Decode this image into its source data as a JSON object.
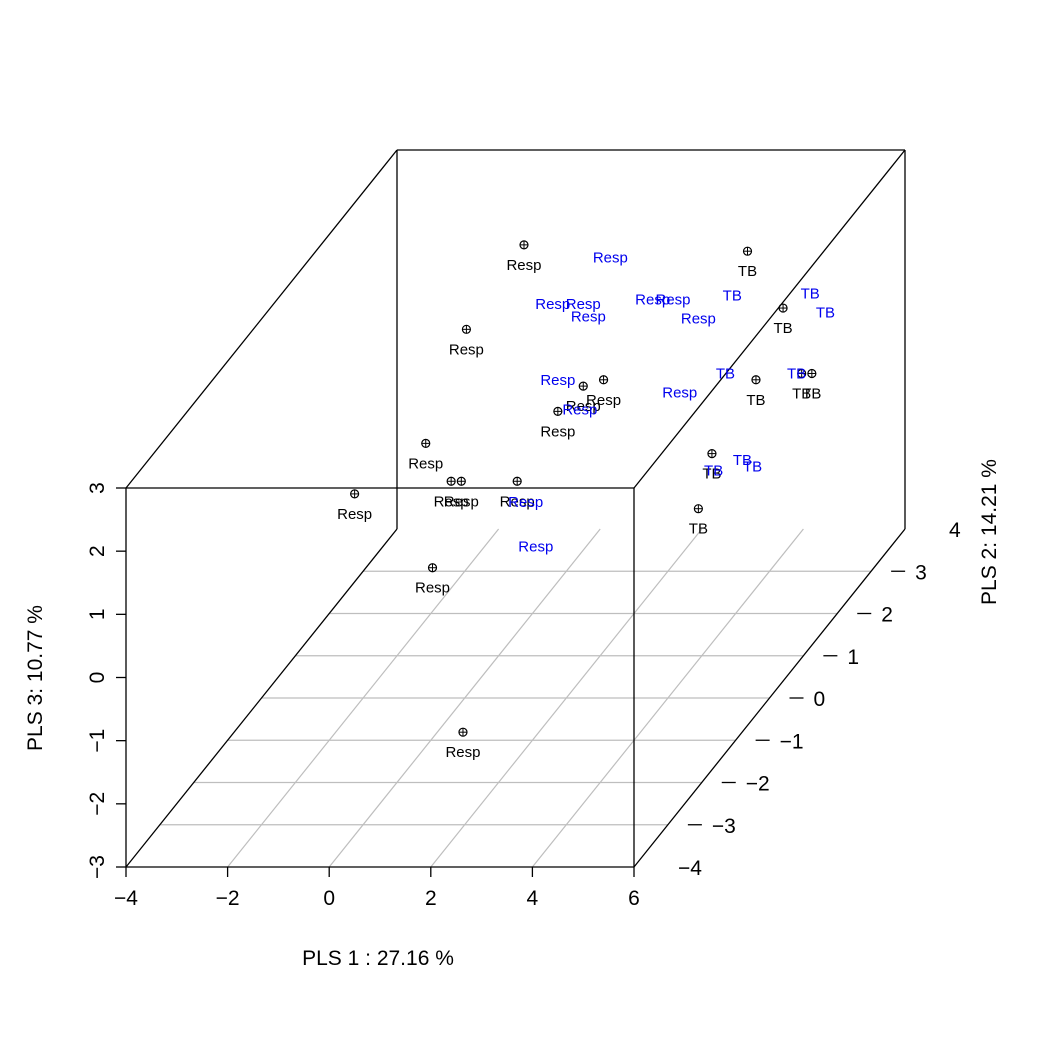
{
  "chart_data": {
    "type": "scatter",
    "projection": "3d",
    "title": "",
    "xlabel": "PLS 1 :  27.16 %",
    "ylabel": "PLS 2: 14.21 %",
    "zlabel": "PLS 3:  10.77 %",
    "xlim": [
      -4,
      6
    ],
    "ylim": [
      -4,
      4
    ],
    "zlim": [
      -3,
      3
    ],
    "x_ticks": [
      "−4",
      "−2",
      "0",
      "2",
      "4",
      "6"
    ],
    "y_ticks": [
      "−4",
      "−3",
      "−2",
      "−1",
      "0",
      "1",
      "2",
      "3",
      "4"
    ],
    "z_ticks": [
      "−3",
      "−2",
      "−1",
      "0",
      "1",
      "2",
      "3"
    ],
    "grid": "floor",
    "colors": {
      "projected_points": "#000000",
      "predicted_labels": "#0000ee",
      "grid": "#bebebe"
    },
    "projected_points": [
      {
        "label": "Resp",
        "x": -0.9,
        "y": 3.1,
        "z": 2.1
      },
      {
        "label": "Resp",
        "x": -0.9,
        "y": 1.4,
        "z": 1.9
      },
      {
        "label": "Resp",
        "x": -1.5,
        "y": -1.0,
        "z": 0.9
      },
      {
        "label": "Resp",
        "x": -0.1,
        "y": -1.0,
        "z": 1.7
      },
      {
        "label": "Resp",
        "x": 0.4,
        "y": -1.0,
        "z": 1.1
      },
      {
        "label": "Resp",
        "x": 0.6,
        "y": -1.0,
        "z": 1.1
      },
      {
        "label": "Resp",
        "x": 0.7,
        "y": -2.0,
        "z": 0.4
      },
      {
        "label": "Resp",
        "x": 1.7,
        "y": -1.0,
        "z": 1.1
      },
      {
        "label": "Resp",
        "x": 2.3,
        "y": -3.5,
        "z": -1.2
      },
      {
        "label": "Resp",
        "x": 0.5,
        "y": 2.0,
        "z": 0.2
      },
      {
        "label": "Resp",
        "x": 1.0,
        "y": 2.0,
        "z": 0.6
      },
      {
        "label": "Resp",
        "x": 1.4,
        "y": 2.0,
        "z": 0.7
      },
      {
        "label": "TB",
        "x": 3.5,
        "y": 3.1,
        "z": 2.0
      },
      {
        "label": "TB",
        "x": 4.2,
        "y": 3.1,
        "z": 1.1
      },
      {
        "label": "TB",
        "x": 4.4,
        "y": 2.0,
        "z": 0.7
      },
      {
        "label": "TB",
        "x": 4.2,
        "y": 1.0,
        "z": 0.2
      },
      {
        "label": "TB",
        "x": 5.3,
        "y": 2.0,
        "z": 0.8
      },
      {
        "label": "TB",
        "x": 5.5,
        "y": 2.0,
        "z": 0.8
      },
      {
        "label": "TB",
        "x": 5.6,
        "y": -1.5,
        "z": 1.0
      }
    ],
    "predicted_labels": [
      {
        "label": "Resp",
        "x": 0.8,
        "y": 3.1,
        "z": 1.9
      },
      {
        "label": "Resp",
        "x": 0.4,
        "y": 2.0,
        "z": 1.9
      },
      {
        "label": "Resp",
        "x": 1.0,
        "y": 2.0,
        "z": 1.9
      },
      {
        "label": "Resp",
        "x": 1.1,
        "y": 2.0,
        "z": 1.7
      },
      {
        "label": "Resp",
        "x": 1.7,
        "y": 3.0,
        "z": 1.3
      },
      {
        "label": "Resp",
        "x": 2.1,
        "y": 3.0,
        "z": 1.3
      },
      {
        "label": "Resp",
        "x": 2.6,
        "y": 3.0,
        "z": 1.0
      },
      {
        "label": "Resp",
        "x": 1.1,
        "y": 1.1,
        "z": 1.3
      },
      {
        "label": "Resp",
        "x": 1.6,
        "y": 1.0,
        "z": 0.9
      },
      {
        "label": "Resp",
        "x": 2.9,
        "y": 2.0,
        "z": 0.5
      },
      {
        "label": "Resp",
        "x": 1.4,
        "y": -0.3,
        "z": 0.3
      },
      {
        "label": "Resp",
        "x": 2.0,
        "y": -0.9,
        "z": 0.0
      },
      {
        "label": "TB",
        "x": 3.2,
        "y": 3.1,
        "z": 1.3
      },
      {
        "label": "TB",
        "x": 4.8,
        "y": 3.0,
        "z": 1.4
      },
      {
        "label": "TB",
        "x": 5.1,
        "y": 3.0,
        "z": 1.1
      },
      {
        "label": "TB",
        "x": 3.8,
        "y": 2.0,
        "z": 0.8
      },
      {
        "label": "TB",
        "x": 5.2,
        "y": 2.0,
        "z": 0.8
      },
      {
        "label": "TB",
        "x": 4.8,
        "y": 1.0,
        "z": 0.1
      },
      {
        "label": "TB",
        "x": 4.3,
        "y": 0.9,
        "z": 0.0
      },
      {
        "label": "TB",
        "x": 5.0,
        "y": 1.0,
        "z": 0.0
      }
    ]
  }
}
